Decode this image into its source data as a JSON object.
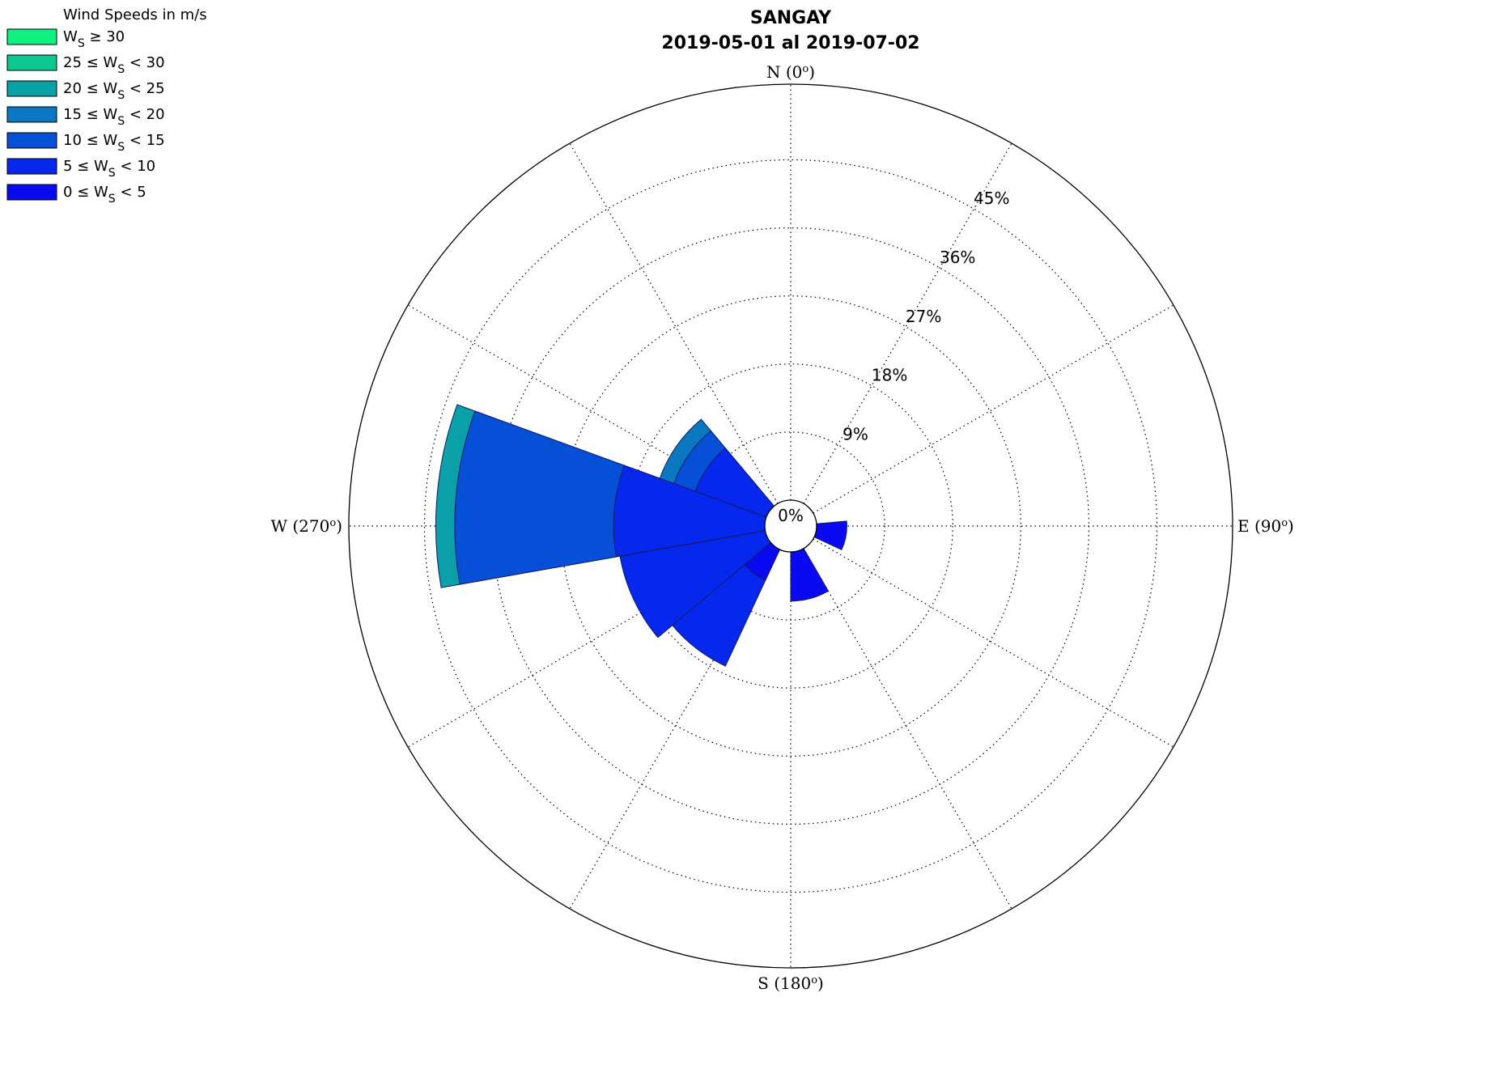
{
  "chart_data": {
    "type": "windrose",
    "title": "SANGAY",
    "subtitle": "2019-05-01 al 2019-07-02",
    "legend_title": "Wind Speeds in m/s",
    "legend_position": "top-left",
    "center_label": "0%",
    "rlim": [
      0,
      55
    ],
    "radial_ticks": [
      {
        "value": 9,
        "label": "9%"
      },
      {
        "value": 18,
        "label": "18%"
      },
      {
        "value": 27,
        "label": "27%"
      },
      {
        "value": 36,
        "label": "36%"
      },
      {
        "value": 45,
        "label": "45%"
      }
    ],
    "direction_labels": [
      {
        "angle": 0,
        "letter": "N",
        "deg": "0"
      },
      {
        "angle": 90,
        "letter": "E",
        "deg": "90"
      },
      {
        "angle": 180,
        "letter": "S",
        "deg": "180"
      },
      {
        "angle": 270,
        "letter": "W",
        "deg": "270"
      }
    ],
    "degree_symbol": "o",
    "grid": true,
    "bins": [
      {
        "label_pre": "0 ≤ W",
        "label_post": " < 5",
        "color": "#0a0af0"
      },
      {
        "label_pre": "5 ≤ W",
        "label_post": " < 10",
        "color": "#0628ec"
      },
      {
        "label_pre": "10 ≤ W",
        "label_post": " < 15",
        "color": "#0550d6"
      },
      {
        "label_pre": "15 ≤ W",
        "label_post": " < 20",
        "color": "#0a78c0"
      },
      {
        "label_pre": "20 ≤ W",
        "label_post": " < 25",
        "color": "#0aa0a8"
      },
      {
        "label_pre": "25 ≤ W",
        "label_post": " < 30",
        "color": "#0ac890"
      },
      {
        "label_pre": "W",
        "label_post": " ≥ 30",
        "color": "#10f080"
      }
    ],
    "subscript": "S",
    "sectors": [
      {
        "direction": 100,
        "cumulative": [
          4,
          4,
          4,
          4,
          4,
          4,
          4
        ]
      },
      {
        "direction": 165,
        "cumulative": [
          6.5,
          6.5,
          6.5,
          6.5,
          6.5,
          6.5,
          6.5
        ]
      },
      {
        "direction": 220,
        "cumulative": [
          4.5,
          17,
          17,
          17,
          17,
          17,
          17
        ]
      },
      {
        "direction": 245,
        "cumulative": [
          0,
          19.5,
          19.5,
          19.5,
          19.5,
          19.5,
          19.5
        ]
      },
      {
        "direction": 275,
        "cumulative": [
          0,
          20,
          41,
          41,
          43.5,
          43.5,
          43.5
        ]
      },
      {
        "direction": 305,
        "cumulative": [
          0,
          10,
          13,
          15,
          15,
          15,
          15
        ]
      }
    ],
    "sector_width": 30
  }
}
